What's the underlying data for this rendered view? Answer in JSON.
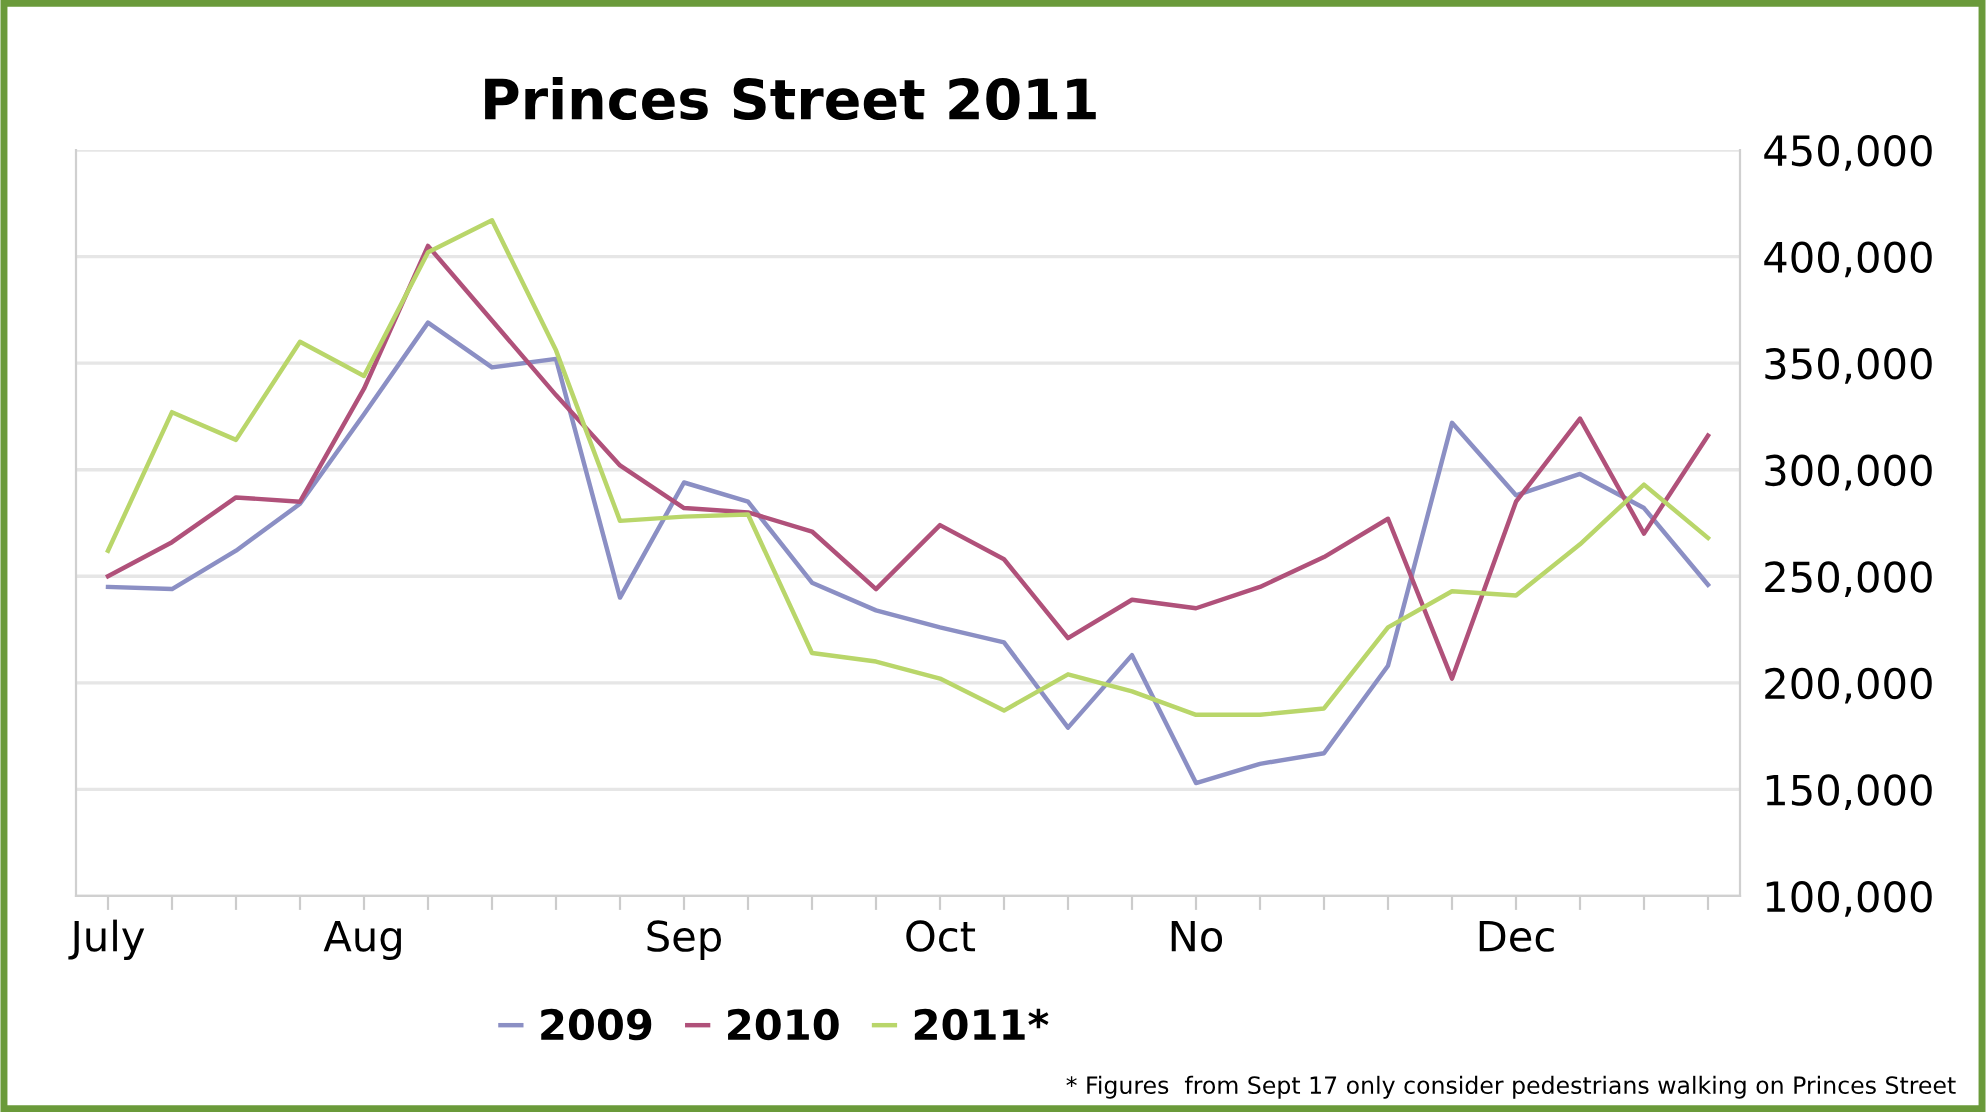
{
  "chart_data": {
    "type": "line",
    "title": "Princes Street 2011",
    "categories": [
      "July",
      null,
      null,
      null,
      "Aug",
      null,
      null,
      null,
      null,
      "Sep",
      null,
      null,
      null,
      "Oct",
      null,
      null,
      null,
      "No",
      null,
      null,
      null,
      null,
      "Dec",
      null,
      null,
      null
    ],
    "series": [
      {
        "name": "2009",
        "color": "#8b8fc4",
        "values": [
          245000,
          244000,
          262000,
          284000,
          326000,
          369000,
          348000,
          352000,
          240000,
          294000,
          285000,
          247000,
          234000,
          226000,
          219000,
          179000,
          213000,
          153000,
          162000,
          167000,
          208000,
          322000,
          288000,
          298000,
          282000,
          246000
        ]
      },
      {
        "name": "2010",
        "color": "#b0517a",
        "values": [
          250000,
          266000,
          287000,
          285000,
          338000,
          405000,
          370000,
          335000,
          302000,
          282000,
          280000,
          271000,
          244000,
          274000,
          258000,
          221000,
          239000,
          235000,
          245000,
          259000,
          277000,
          202000,
          285000,
          324000,
          270000,
          316000
        ]
      },
      {
        "name": "2011*",
        "color": "#b9d66a",
        "values": [
          262000,
          327000,
          314000,
          360000,
          344000,
          402000,
          417000,
          356000,
          276000,
          278000,
          279000,
          214000,
          210000,
          202000,
          187000,
          204000,
          196000,
          185000,
          185000,
          188000,
          226000,
          243000,
          241000,
          265000,
          293000,
          268000
        ]
      }
    ],
    "ylim": [
      100000,
      450000
    ],
    "yticks": [
      {
        "value": 100000,
        "label": "100,000"
      },
      {
        "value": 150000,
        "label": "150,000"
      },
      {
        "value": 200000,
        "label": "200,000"
      },
      {
        "value": 250000,
        "label": "250,000"
      },
      {
        "value": 300000,
        "label": "300,000"
      },
      {
        "value": 350000,
        "label": "350,000"
      },
      {
        "value": 400000,
        "label": "400,000"
      },
      {
        "value": 450000,
        "label": "450,000"
      }
    ],
    "grid": "y",
    "legend": "bottom",
    "marker": "none",
    "line_style": "solid",
    "annotations": [
      "* Figures  from Sept 17 only consider pedestrians walking on Princes Street"
    ]
  }
}
